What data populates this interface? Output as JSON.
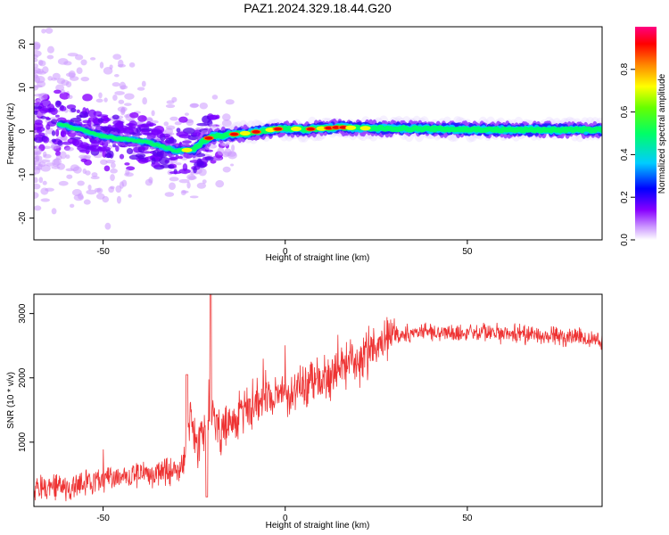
{
  "figure": {
    "title": "PAZ1.2024.329.18.44.G20"
  },
  "chart_data": [
    {
      "type": "heatmap",
      "xlabel": "Height of straight line (km)",
      "ylabel": "Frequency (Hz)",
      "xlim": [
        -69,
        87
      ],
      "ylim": [
        -25,
        24
      ],
      "xticks": [
        -50,
        0,
        50
      ],
      "yticks": [
        -20,
        -10,
        0,
        10,
        20
      ],
      "ridge": {
        "x": [
          -69,
          -65,
          -60,
          -55,
          -50,
          -45,
          -40,
          -35,
          -30,
          -25,
          -22,
          -20,
          -15,
          -10,
          -5,
          0,
          5,
          10,
          15,
          20,
          30,
          40,
          50,
          60,
          70,
          80,
          87
        ],
        "y": [
          2.5,
          2.2,
          1.2,
          0,
          -1.2,
          -1.8,
          -2.2,
          -3.2,
          -4.6,
          -4.2,
          -2.0,
          -1.2,
          -0.8,
          -0.4,
          0.2,
          0.7,
          0.4,
          0.6,
          0.9,
          0.7,
          0.6,
          0.5,
          0.4,
          0.3,
          0.3,
          0.3,
          0.3
        ]
      },
      "grid": false,
      "colorbar": {
        "label": "Normalized spectral amplitude",
        "range": [
          0,
          1
        ],
        "ticks": [
          "0.0",
          "0.2",
          "0.4",
          "0.6",
          "0.8"
        ],
        "tick_values": [
          0,
          0.2,
          0.4,
          0.6,
          0.8
        ],
        "colors": [
          "#ffffff",
          "#8800ff",
          "#0000ff",
          "#00ffff",
          "#00ff00",
          "#ffff00",
          "#ff8800",
          "#ff0000",
          "#ff0080"
        ]
      }
    },
    {
      "type": "line",
      "xlabel": "Height of straight line (km)",
      "ylabel": "SNR (10 * v/v)",
      "xlim": [
        -69,
        87
      ],
      "ylim": [
        0,
        3300
      ],
      "xticks": [
        -50,
        0,
        50
      ],
      "yticks": [
        1000,
        2000,
        3000
      ],
      "grid": false,
      "series": [
        {
          "color": "#ee3333",
          "x": [
            -69,
            -65,
            -60,
            -55,
            -50,
            -45,
            -40,
            -35,
            -30,
            -28,
            -26,
            -24,
            -22,
            -20,
            -18,
            -15,
            -10,
            -5,
            0,
            5,
            10,
            15,
            20,
            25,
            30,
            35,
            40,
            45,
            50,
            55,
            60,
            65,
            70,
            75,
            80,
            87
          ],
          "y": [
            230,
            260,
            300,
            350,
            400,
            450,
            480,
            520,
            560,
            620,
            1500,
            880,
            1200,
            1450,
            1150,
            1300,
            1550,
            1650,
            1750,
            1900,
            2000,
            2100,
            2250,
            2500,
            2650,
            2700,
            2720,
            2720,
            2700,
            2700,
            2690,
            2680,
            2660,
            2640,
            2620,
            2600
          ]
        }
      ]
    }
  ]
}
